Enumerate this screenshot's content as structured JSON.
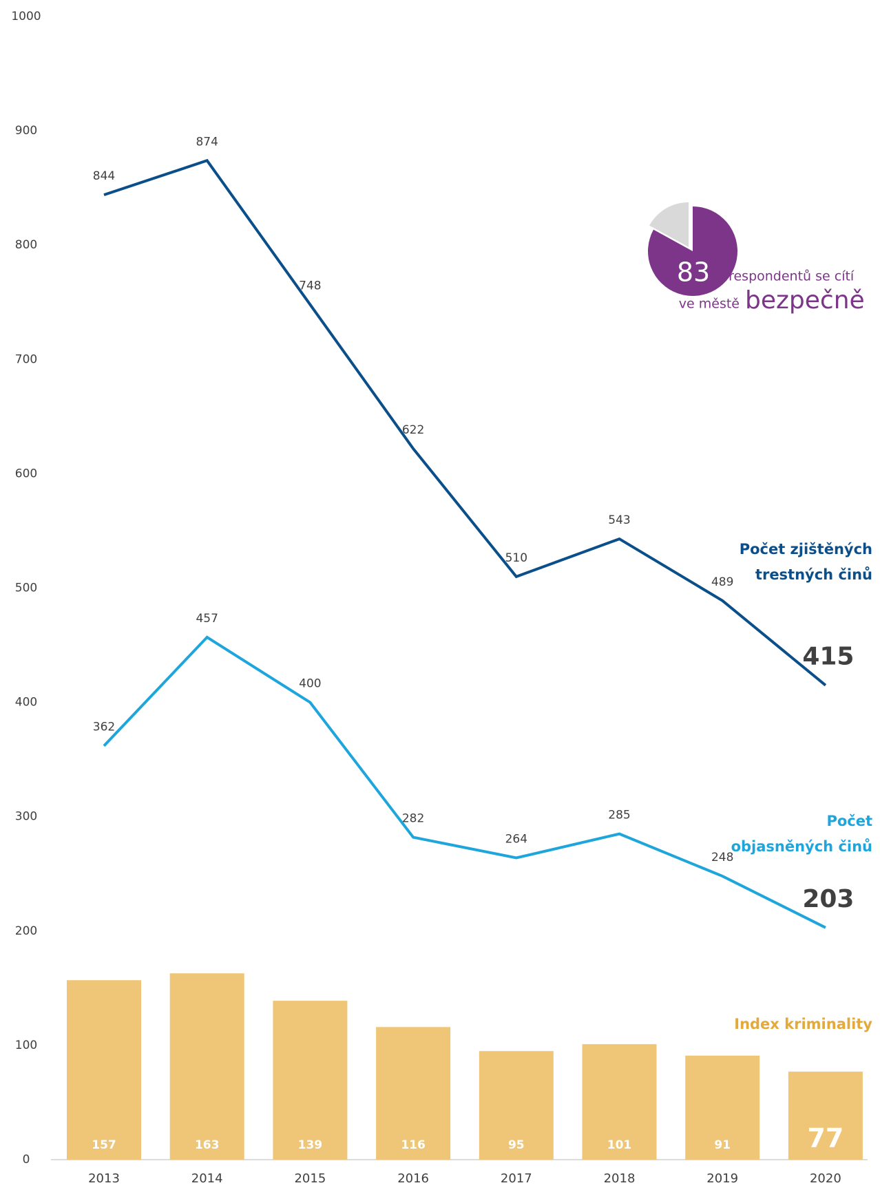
{
  "chart_data": [
    {
      "type": "combo",
      "categories": [
        "2013",
        "2014",
        "2015",
        "2016",
        "2017",
        "2018",
        "2019",
        "2020"
      ],
      "ylim": [
        0,
        1000
      ],
      "yticks": [
        0,
        100,
        200,
        300,
        400,
        500,
        600,
        700,
        800,
        900,
        1000
      ],
      "series": [
        {
          "name": "Počet zjištěných trestných činů",
          "type": "line",
          "color": "#0b4f8a",
          "values": [
            844,
            874,
            748,
            622,
            510,
            543,
            489,
            415
          ]
        },
        {
          "name": "Počet objasněných činů",
          "type": "line",
          "color": "#1ea6dc",
          "values": [
            362,
            457,
            400,
            282,
            264,
            285,
            248,
            203
          ]
        },
        {
          "name": "Index kriminality",
          "type": "bar",
          "color": "#efc677",
          "name_color": "#e3a93a",
          "values": [
            157,
            163,
            139,
            116,
            95,
            101,
            91,
            77
          ]
        }
      ]
    },
    {
      "type": "pie",
      "values": [
        83
      ],
      "color": "#7d3589",
      "rest_color": "#d9d9d9",
      "text": [
        "% respondentů se cítí",
        "ve městě",
        "bezpečně"
      ]
    }
  ]
}
